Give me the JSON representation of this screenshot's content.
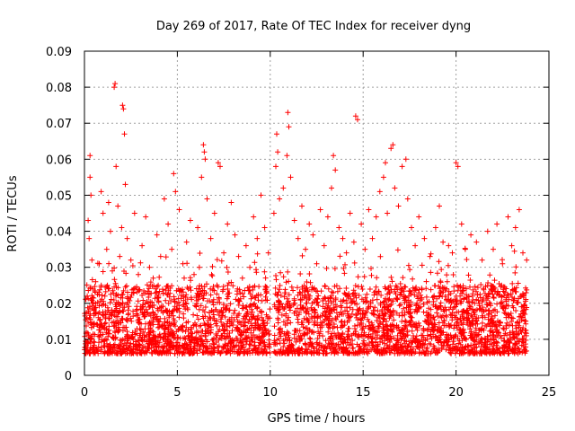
{
  "chart_data": {
    "type": "scatter",
    "title": "Day 269 of 2017, Rate Of TEC Index for receiver dyng",
    "xlabel": "GPS time / hours",
    "ylabel": "ROTI / TECUs",
    "xlim": [
      0,
      25
    ],
    "ylim": [
      0,
      0.09
    ],
    "x_ticks": [
      0,
      5,
      10,
      15,
      20,
      25
    ],
    "x_tick_labels": [
      "0",
      "5",
      "10",
      "15",
      "20",
      "25"
    ],
    "y_ticks": [
      0,
      0.01,
      0.02,
      0.03,
      0.04,
      0.05,
      0.06,
      0.07,
      0.08,
      0.09
    ],
    "y_tick_labels": [
      "0",
      "0.01",
      "0.02",
      "0.03",
      "0.04",
      "0.05",
      "0.06",
      "0.07",
      "0.08",
      "0.09"
    ],
    "grid": true,
    "marker": "+",
    "marker_color": "#ff0000",
    "series": [
      {
        "name": "ROTI",
        "points": [
          [
            0.1,
            0.012
          ],
          [
            0.15,
            0.022
          ],
          [
            0.2,
            0.043
          ],
          [
            0.25,
            0.038
          ],
          [
            0.3,
            0.061
          ],
          [
            0.3,
            0.055
          ],
          [
            0.35,
            0.05
          ],
          [
            0.4,
            0.032
          ],
          [
            0.5,
            0.018
          ],
          [
            0.6,
            0.026
          ],
          [
            0.7,
            0.014
          ],
          [
            0.8,
            0.031
          ],
          [
            0.9,
            0.051
          ],
          [
            1.0,
            0.045
          ],
          [
            1.1,
            0.022
          ],
          [
            1.2,
            0.035
          ],
          [
            1.3,
            0.048
          ],
          [
            1.4,
            0.04
          ],
          [
            1.5,
            0.029
          ],
          [
            1.6,
            0.08
          ],
          [
            1.65,
            0.081
          ],
          [
            1.7,
            0.058
          ],
          [
            1.8,
            0.047
          ],
          [
            1.9,
            0.033
          ],
          [
            2.0,
            0.041
          ],
          [
            2.05,
            0.075
          ],
          [
            2.1,
            0.074
          ],
          [
            2.15,
            0.067
          ],
          [
            2.2,
            0.053
          ],
          [
            2.3,
            0.038
          ],
          [
            2.5,
            0.032
          ],
          [
            2.7,
            0.045
          ],
          [
            2.9,
            0.028
          ],
          [
            3.1,
            0.036
          ],
          [
            3.3,
            0.044
          ],
          [
            3.5,
            0.03
          ],
          [
            3.7,
            0.027
          ],
          [
            3.9,
            0.039
          ],
          [
            4.1,
            0.033
          ],
          [
            4.3,
            0.049
          ],
          [
            4.5,
            0.042
          ],
          [
            4.7,
            0.035
          ],
          [
            4.8,
            0.056
          ],
          [
            4.9,
            0.051
          ],
          [
            5.1,
            0.046
          ],
          [
            5.3,
            0.031
          ],
          [
            5.5,
            0.037
          ],
          [
            5.7,
            0.043
          ],
          [
            5.9,
            0.028
          ],
          [
            6.1,
            0.041
          ],
          [
            6.3,
            0.055
          ],
          [
            6.4,
            0.064
          ],
          [
            6.45,
            0.062
          ],
          [
            6.5,
            0.06
          ],
          [
            6.6,
            0.049
          ],
          [
            6.8,
            0.038
          ],
          [
            7.0,
            0.045
          ],
          [
            7.2,
            0.059
          ],
          [
            7.3,
            0.058
          ],
          [
            7.5,
            0.034
          ],
          [
            7.7,
            0.042
          ],
          [
            7.9,
            0.048
          ],
          [
            8.1,
            0.039
          ],
          [
            8.3,
            0.033
          ],
          [
            8.5,
            0.027
          ],
          [
            8.7,
            0.036
          ],
          [
            8.9,
            0.03
          ],
          [
            9.1,
            0.044
          ],
          [
            9.3,
            0.038
          ],
          [
            9.5,
            0.05
          ],
          [
            9.7,
            0.041
          ],
          [
            9.9,
            0.034
          ],
          [
            10.2,
            0.045
          ],
          [
            10.3,
            0.058
          ],
          [
            10.35,
            0.067
          ],
          [
            10.4,
            0.062
          ],
          [
            10.5,
            0.049
          ],
          [
            10.7,
            0.052
          ],
          [
            10.9,
            0.061
          ],
          [
            10.95,
            0.073
          ],
          [
            11.0,
            0.069
          ],
          [
            11.1,
            0.055
          ],
          [
            11.3,
            0.043
          ],
          [
            11.5,
            0.038
          ],
          [
            11.7,
            0.047
          ],
          [
            11.9,
            0.035
          ],
          [
            12.1,
            0.042
          ],
          [
            12.3,
            0.039
          ],
          [
            12.5,
            0.031
          ],
          [
            12.7,
            0.046
          ],
          [
            12.9,
            0.036
          ],
          [
            13.1,
            0.044
          ],
          [
            13.3,
            0.052
          ],
          [
            13.4,
            0.061
          ],
          [
            13.5,
            0.057
          ],
          [
            13.7,
            0.041
          ],
          [
            13.9,
            0.038
          ],
          [
            14.1,
            0.034
          ],
          [
            14.3,
            0.045
          ],
          [
            14.5,
            0.037
          ],
          [
            14.6,
            0.072
          ],
          [
            14.7,
            0.071
          ],
          [
            14.9,
            0.042
          ],
          [
            15.1,
            0.035
          ],
          [
            15.3,
            0.046
          ],
          [
            15.5,
            0.038
          ],
          [
            15.7,
            0.044
          ],
          [
            15.9,
            0.051
          ],
          [
            16.1,
            0.055
          ],
          [
            16.2,
            0.059
          ],
          [
            16.3,
            0.045
          ],
          [
            16.5,
            0.063
          ],
          [
            16.6,
            0.064
          ],
          [
            16.7,
            0.052
          ],
          [
            16.9,
            0.047
          ],
          [
            17.1,
            0.058
          ],
          [
            17.3,
            0.06
          ],
          [
            17.4,
            0.049
          ],
          [
            17.6,
            0.041
          ],
          [
            17.8,
            0.036
          ],
          [
            18.0,
            0.044
          ],
          [
            18.3,
            0.038
          ],
          [
            18.6,
            0.033
          ],
          [
            18.9,
            0.041
          ],
          [
            19.1,
            0.047
          ],
          [
            19.3,
            0.037
          ],
          [
            19.6,
            0.036
          ],
          [
            19.8,
            0.034
          ],
          [
            20.0,
            0.059
          ],
          [
            20.1,
            0.058
          ],
          [
            20.3,
            0.042
          ],
          [
            20.5,
            0.035
          ],
          [
            20.8,
            0.039
          ],
          [
            21.1,
            0.037
          ],
          [
            21.4,
            0.032
          ],
          [
            21.7,
            0.04
          ],
          [
            22.0,
            0.035
          ],
          [
            22.2,
            0.042
          ],
          [
            22.5,
            0.031
          ],
          [
            22.8,
            0.044
          ],
          [
            23.0,
            0.036
          ],
          [
            23.2,
            0.041
          ],
          [
            23.4,
            0.046
          ],
          [
            23.6,
            0.034
          ],
          [
            23.8,
            0.032
          ]
        ],
        "dense_band": {
          "description": "dense cluster of points from 0 to 10 h and from 10.2 to 23.8 h",
          "y_range": [
            0.003,
            0.025
          ],
          "count": 3500
        }
      }
    ]
  }
}
